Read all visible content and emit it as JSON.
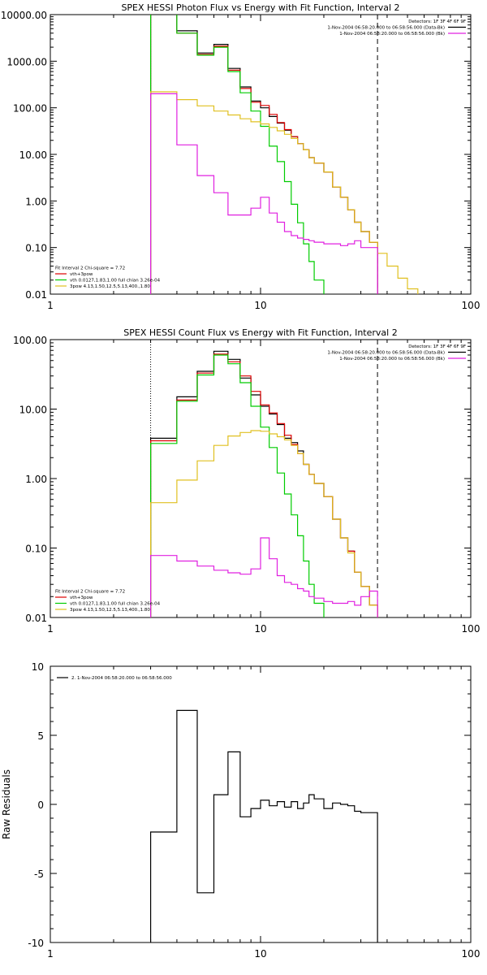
{
  "chart_data": [
    {
      "type": "line",
      "title": "SPEX HESSI Photon Flux vs Energy with Fit Function, Interval 2",
      "xlabel": "",
      "ylabel": "",
      "xscale": "log",
      "yscale": "log",
      "xlim": [
        1,
        100
      ],
      "ylim": [
        0.01,
        10000
      ],
      "xticks": [
        "1",
        "10",
        "100"
      ],
      "yticks": [
        "0.01",
        "0.10",
        "1.00",
        "10.00",
        "100.00",
        "1000.00",
        "10000.00"
      ],
      "dashed_vline_x": 36,
      "dotted_vline_x": 3,
      "legend_topright": [
        "Detectors: 1F 3F 4F 6F 9F",
        "1-Nov-2004 06:58:20.000 to 06:58:56.000 (Data-Bk)",
        "1-Nov-2004 06:58:20.000 to 06:58:56.000 (Bk)"
      ],
      "legend_bottomleft": [
        "Fit Interval 2   Chi-square = 7.72",
        "vth+3pow",
        "vth 0.0127,1.83,1.00  full chian 3.26e-04",
        "3pow 4.13,1.50,12.5,5.13,400.,1.80"
      ],
      "edges": [
        3,
        4,
        5,
        6,
        7,
        8,
        9,
        10,
        11,
        12,
        13,
        14,
        15,
        16,
        17,
        18,
        20,
        22,
        24,
        26,
        28,
        30,
        33,
        36,
        40,
        45,
        50,
        56,
        63
      ],
      "series": [
        {
          "name": "1-Nov-2004 06:58:20.000 to 06:58:56.000 (Data-Bk)",
          "color": "#000000",
          "values": [
            10500,
            4500,
            1500,
            2300,
            700,
            280,
            140,
            100,
            65,
            47,
            33,
            24,
            17,
            12.5,
            8.5,
            6.5,
            4.2,
            2.0,
            1.2,
            0.65,
            0.35,
            0.22,
            0.13
          ]
        },
        {
          "name": "vth+3pow",
          "color": "#dd0000",
          "values": [
            10500,
            4000,
            1400,
            2100,
            640,
            260,
            132,
            112,
            72,
            48,
            34,
            24,
            17,
            12.5,
            8.5,
            6.5,
            4.2,
            2.0,
            1.2,
            0.65,
            0.35,
            0.22,
            0.13
          ]
        },
        {
          "name": "vth 0.0127,1.83,1.00  full chian 3.26e-04",
          "color": "#00cc00",
          "values": [
            10500,
            4000,
            1350,
            2000,
            600,
            210,
            85,
            40,
            15,
            7,
            2.6,
            0.85,
            0.34,
            0.12,
            0.05,
            0.02,
            0.008
          ]
        },
        {
          "name": "3pow 4.13,1.50,12.5,5.13,400.,1.80",
          "color": "#e0c020",
          "values": [
            220,
            150,
            110,
            85,
            70,
            58,
            50,
            45,
            38,
            32,
            27,
            22,
            17,
            12.5,
            8.5,
            6.5,
            4.2,
            2.0,
            1.2,
            0.65,
            0.35,
            0.22,
            0.13,
            0.075,
            0.04,
            0.022,
            0.013,
            0.008
          ]
        },
        {
          "name": "1-Nov-2004 06:58:20.000 to 06:58:56.000 (Bk)",
          "color": "#e020e0",
          "values": [
            200,
            16,
            3.5,
            1.5,
            0.5,
            0.5,
            0.7,
            1.2,
            0.55,
            0.35,
            0.22,
            0.18,
            0.16,
            0.15,
            0.14,
            0.13,
            0.12,
            0.12,
            0.11,
            0.12,
            0.14,
            0.1,
            0.1
          ]
        }
      ]
    },
    {
      "type": "line",
      "title": "SPEX HESSI Count Flux vs Energy with Fit Function, Interval 2",
      "xlabel": "",
      "ylabel": "",
      "xscale": "log",
      "yscale": "log",
      "xlim": [
        1,
        100
      ],
      "ylim": [
        0.01,
        100
      ],
      "xticks": [
        "1",
        "10",
        "100"
      ],
      "yticks": [
        "0.01",
        "0.10",
        "1.00",
        "10.00",
        "100.00"
      ],
      "dashed_vline_x": 36,
      "dotted_vline_x": 3,
      "legend_topright": [
        "Detectors: 1F 3F 4F 6F 9F",
        "1-Nov-2004 06:58:20.000 to 06:58:56.000 (Data-Bk)",
        "1-Nov-2004 06:58:20.000 to 06:58:56.000 (Bk)"
      ],
      "legend_bottomleft": [
        "Fit Interval 2   Chi-square = 7.72",
        "vth+3pow",
        "vth 0.0127,1.83,1.00  full chian 3.26e-04",
        "3pow 4.13,1.50,12.5,5.13,400.,1.80"
      ],
      "edges": [
        3,
        4,
        5,
        6,
        7,
        8,
        9,
        10,
        11,
        12,
        13,
        14,
        15,
        16,
        17,
        18,
        20,
        22,
        24,
        26,
        28,
        30,
        33,
        36,
        40
      ],
      "series": [
        {
          "name": "1-Nov-2004 06:58:20.000 to 06:58:56.000 (Data-Bk)",
          "color": "#000000",
          "values": [
            3.8,
            15,
            35,
            68,
            52,
            28,
            16,
            11,
            8.5,
            6.0,
            3.8,
            3.3,
            2.5,
            1.6,
            1.15,
            0.85,
            0.55,
            0.26,
            0.14,
            0.09,
            0.045,
            0.028,
            0.015
          ]
        },
        {
          "name": "vth+3pow",
          "color": "#dd0000",
          "values": [
            3.5,
            13.5,
            33,
            62,
            48,
            30,
            18,
            11.5,
            8.8,
            6.2,
            4.2,
            3.1,
            2.3,
            1.6,
            1.15,
            0.85,
            0.55,
            0.26,
            0.14,
            0.09,
            0.045,
            0.028,
            0.015
          ]
        },
        {
          "name": "vth 0.0127,1.83,1.00  full chian 3.26e-04",
          "color": "#00cc00",
          "values": [
            3.2,
            13,
            31,
            60,
            45,
            24,
            11,
            5.5,
            2.8,
            1.2,
            0.6,
            0.3,
            0.15,
            0.065,
            0.03,
            0.016,
            0.008
          ]
        },
        {
          "name": "3pow 4.13,1.50,12.5,5.13,400.,1.80",
          "color": "#e0c020",
          "values": [
            0.45,
            0.95,
            1.8,
            3.0,
            4.1,
            4.6,
            4.9,
            4.8,
            4.4,
            4.0,
            3.6,
            3.0,
            2.3,
            1.6,
            1.15,
            0.85,
            0.55,
            0.26,
            0.14,
            0.085,
            0.045,
            0.028,
            0.015,
            0.008
          ]
        },
        {
          "name": "1-Nov-2004 06:58:20.000 to 06:58:56.000 (Bk)",
          "color": "#e020e0",
          "values": [
            0.078,
            0.065,
            0.055,
            0.048,
            0.044,
            0.042,
            0.05,
            0.14,
            0.07,
            0.04,
            0.032,
            0.03,
            0.026,
            0.024,
            0.02,
            0.019,
            0.017,
            0.016,
            0.016,
            0.017,
            0.015,
            0.02,
            0.024
          ]
        }
      ]
    },
    {
      "type": "line",
      "title": "",
      "xlabel": "",
      "ylabel": "Raw Residuals",
      "xscale": "log",
      "yscale": "linear",
      "xlim": [
        1,
        100
      ],
      "ylim": [
        -10,
        10
      ],
      "xticks": [
        "1",
        "10",
        "100"
      ],
      "yticks": [
        "-10",
        "-5",
        "0",
        "5",
        "10"
      ],
      "legend_topleft": [
        "2.  1-Nov-2004 06:58:20.000 to 06:58:56.000"
      ],
      "edges": [
        3,
        4,
        5,
        6,
        7,
        8,
        9,
        10,
        11,
        12,
        13,
        14,
        15,
        16,
        17,
        18,
        20,
        22,
        24,
        26,
        28,
        30,
        33,
        36
      ],
      "series": [
        {
          "name": "2.  1-Nov-2004 06:58:20.000 to 06:58:56.000",
          "color": "#000000",
          "values": [
            -2.0,
            6.8,
            -6.4,
            0.7,
            3.8,
            -0.9,
            -0.3,
            0.3,
            -0.1,
            0.2,
            -0.2,
            0.2,
            -0.3,
            0.1,
            0.7,
            0.4,
            -0.3,
            0.1,
            0.0,
            -0.1,
            -0.5,
            -0.6,
            -0.6
          ]
        }
      ]
    }
  ]
}
